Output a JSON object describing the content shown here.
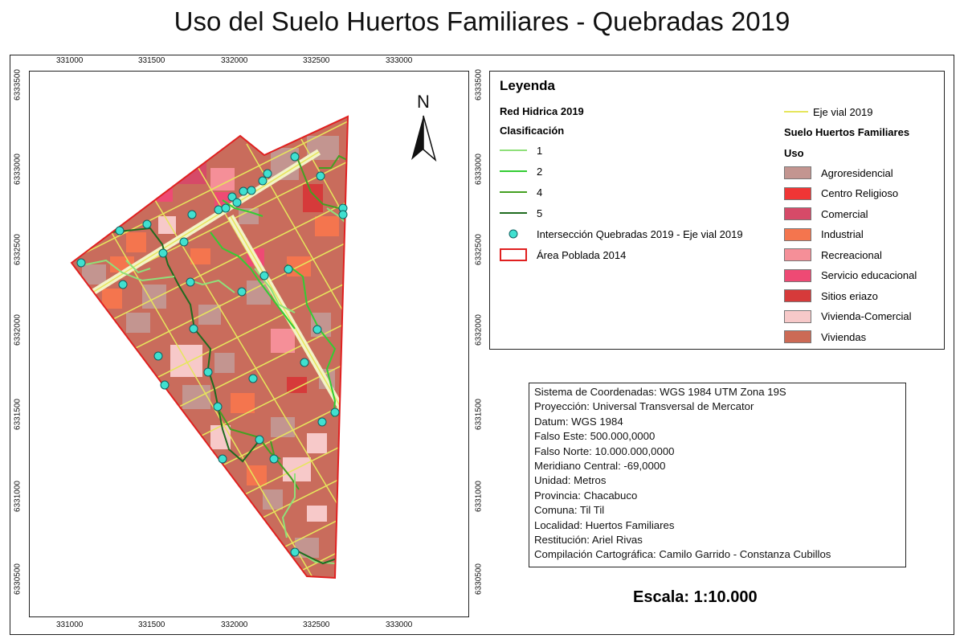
{
  "title": "Uso del Suelo Huertos Familiares - Quebradas 2019",
  "x_ticks": [
    "331000",
    "331500",
    "332000",
    "332500",
    "333000"
  ],
  "y_ticks": [
    "6333500",
    "6333000",
    "6332500",
    "6332000",
    "6331500",
    "6331000",
    "6330500"
  ],
  "north_label": "N",
  "legend": {
    "title": "Leyenda",
    "red_hidrica": "Red Hidrica 2019",
    "clasificacion": "Clasificación",
    "streams": [
      {
        "label": "1",
        "color": "#8fe07a"
      },
      {
        "label": "2",
        "color": "#33cc33"
      },
      {
        "label": "4",
        "color": "#44a022"
      },
      {
        "label": "5",
        "color": "#1f6b1f"
      }
    ],
    "intersection": "Intersección Quebradas 2019 - Eje vial 2019",
    "area_poblada": "Área Poblada 2014",
    "eje_vial": "Eje vial 2019",
    "suelo_title": "Suelo Huertos Familiares",
    "uso": "Uso",
    "classes": [
      {
        "label": "Agroresidencial",
        "color": "#c39590"
      },
      {
        "label": "Centro Religioso",
        "color": "#f03535"
      },
      {
        "label": "Comercial",
        "color": "#d64a68"
      },
      {
        "label": "Industrial",
        "color": "#f4754e"
      },
      {
        "label": "Recreacional",
        "color": "#f58f98"
      },
      {
        "label": "Servicio educacional",
        "color": "#ee4a74"
      },
      {
        "label": "Sitios eriazo",
        "color": "#d63a3a"
      },
      {
        "label": "Vivienda-Comercial",
        "color": "#f7c9c9"
      },
      {
        "label": "Viviendas",
        "color": "#cc6a55"
      }
    ]
  },
  "info": [
    "Sistema de Coordenadas: WGS 1984 UTM Zona 19S",
    "Proyección: Universal Transversal de Mercator",
    "Datum: WGS 1984",
    "Falso Este: 500.000,0000",
    "Falso Norte: 10.000.000,0000",
    "Meridiano Central: -69,0000",
    "Unidad: Metros",
    "Provincia: Chacabuco",
    "Comuna: Til Til",
    "Localidad: Huertos Familiares",
    "Restitución: Ariel Rivas",
    "Compilación Cartográfica: Camilo Garrido - Constanza Cubillos"
  ],
  "scale": "Escala: 1:10.000"
}
